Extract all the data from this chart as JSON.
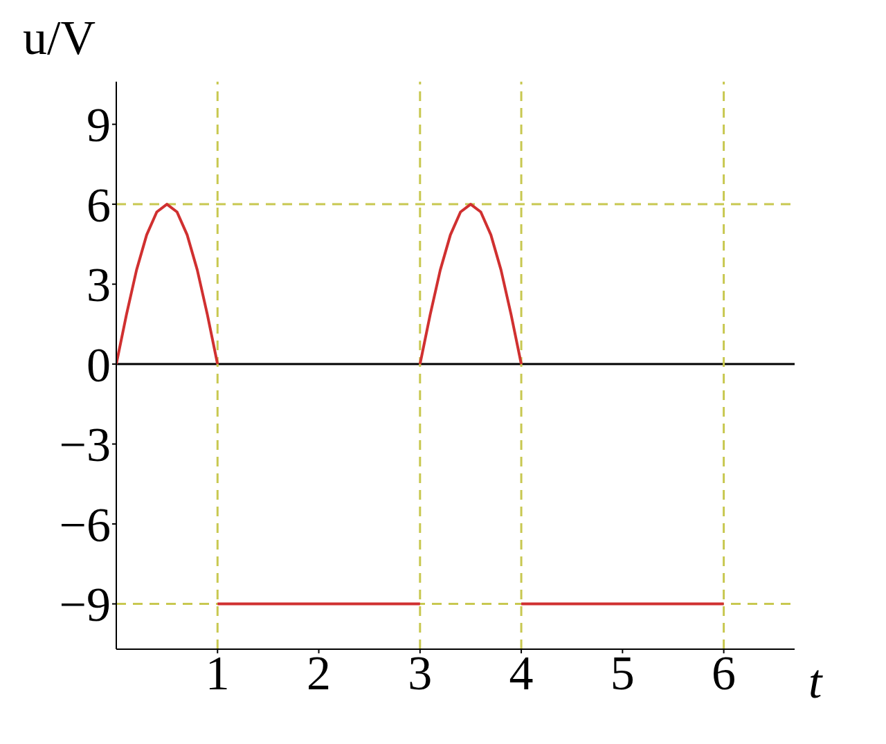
{
  "chart_data": {
    "type": "line",
    "xlabel": "t",
    "ylabel": "u/V",
    "series": [
      {
        "color": "#d03030",
        "x": [
          0,
          0.1,
          0.2,
          0.3,
          0.4,
          0.5,
          0.6,
          0.7,
          0.8,
          0.9,
          1
        ],
        "values": [
          0,
          1.85,
          3.53,
          4.85,
          5.71,
          6,
          5.71,
          4.85,
          3.53,
          1.85,
          0
        ]
      },
      {
        "color": "#d03030",
        "x": [
          1,
          3
        ],
        "values": [
          -9,
          -9
        ]
      },
      {
        "color": "#d03030",
        "x": [
          3,
          3.1,
          3.2,
          3.3,
          3.4,
          3.5,
          3.6,
          3.7,
          3.8,
          3.9,
          4
        ],
        "values": [
          0,
          1.85,
          3.53,
          4.85,
          5.71,
          6,
          5.71,
          4.85,
          3.53,
          1.85,
          0
        ]
      },
      {
        "color": "#d03030",
        "x": [
          4,
          6
        ],
        "values": [
          -9,
          -9
        ]
      }
    ],
    "xlim": [
      0,
      6.7
    ],
    "xticks": [
      1,
      2,
      3,
      4,
      5,
      6
    ],
    "ylim": [
      -10.7,
      10.6
    ],
    "yticks": [
      -9,
      -6,
      -3,
      0,
      3,
      6,
      9
    ],
    "ref_lines": [
      {
        "axis": "y",
        "value": 0,
        "color": "#000000",
        "line_style": "solid"
      },
      {
        "axis": "y",
        "value": 6,
        "color": "#c8c850",
        "line_style": "dashed"
      },
      {
        "axis": "y",
        "value": -9,
        "color": "#c8c850",
        "line_style": "dashed"
      },
      {
        "axis": "x",
        "value": 1,
        "color": "#c8c850",
        "line_style": "dashed"
      },
      {
        "axis": "x",
        "value": 3,
        "color": "#c8c850",
        "line_style": "dashed"
      },
      {
        "axis": "x",
        "value": 4,
        "color": "#c8c850",
        "line_style": "dashed"
      },
      {
        "axis": "x",
        "value": 6,
        "color": "#c8c850",
        "line_style": "dashed"
      }
    ],
    "grid": false,
    "legend": false,
    "marker": "none",
    "line_style": "solid"
  }
}
